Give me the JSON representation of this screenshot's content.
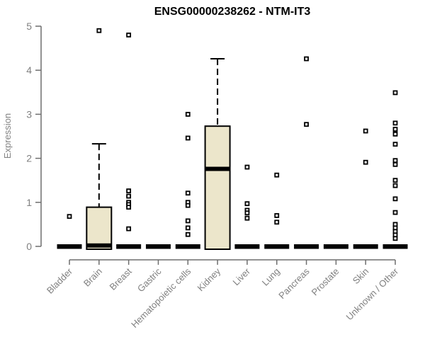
{
  "chart_data": {
    "type": "boxplot",
    "title": "ENSG00000238262 - NTM-IT3",
    "ylabel": "Expression",
    "ylim": [
      0,
      5
    ],
    "yticks": [
      0,
      1,
      2,
      3,
      4,
      5
    ],
    "grid": false,
    "legend": "none",
    "axis_color": "#6e6e6e",
    "label_color": "#808080",
    "title_color": "#000000",
    "box_fill": "#ece6cb",
    "box_stroke": "#000000",
    "categories": [
      "Bladder",
      "Brain",
      "Breast",
      "Gastric",
      "Hematopoietic cells",
      "Kidney",
      "Liver",
      "Lung",
      "Pancreas",
      "Prostate",
      "Skin",
      "Unknown / Other"
    ],
    "boxes": [
      {
        "category": "Bladder",
        "q1": 0,
        "median": 0,
        "q3": 0,
        "whisker_low": 0,
        "whisker_high": 0,
        "outliers": [
          0.68
        ]
      },
      {
        "category": "Brain",
        "q1": 0,
        "median": 0.02,
        "q3": 0.89,
        "whisker_low": 0,
        "whisker_high": 2.33,
        "outliers": [
          4.9
        ]
      },
      {
        "category": "Breast",
        "q1": 0,
        "median": 0,
        "q3": 0,
        "whisker_low": 0,
        "whisker_high": 0,
        "outliers": [
          4.8,
          1.26,
          1.14,
          1.0,
          0.95,
          0.89,
          0.4
        ]
      },
      {
        "category": "Gastric",
        "q1": 0,
        "median": 0,
        "q3": 0,
        "whisker_low": 0,
        "whisker_high": 0,
        "outliers": []
      },
      {
        "category": "Hematopoietic cells",
        "q1": 0,
        "median": 0,
        "q3": 0,
        "whisker_low": 0,
        "whisker_high": 0,
        "outliers": [
          3.0,
          2.46,
          1.21,
          1.0,
          0.93,
          0.58,
          0.42,
          0.27
        ]
      },
      {
        "category": "Kidney",
        "q1": 0,
        "median": 1.76,
        "q3": 2.73,
        "whisker_low": 0,
        "whisker_high": 4.26,
        "outliers": []
      },
      {
        "category": "Liver",
        "q1": 0,
        "median": 0,
        "q3": 0,
        "whisker_low": 0,
        "whisker_high": 0,
        "outliers": [
          1.8,
          0.97,
          0.82,
          0.76,
          0.64
        ]
      },
      {
        "category": "Lung",
        "q1": 0,
        "median": 0,
        "q3": 0,
        "whisker_low": 0,
        "whisker_high": 0,
        "outliers": [
          1.62,
          0.7,
          0.55
        ]
      },
      {
        "category": "Pancreas",
        "q1": 0,
        "median": 0,
        "q3": 0,
        "whisker_low": 0,
        "whisker_high": 0,
        "outliers": [
          4.26,
          2.77
        ]
      },
      {
        "category": "Prostate",
        "q1": 0,
        "median": 0,
        "q3": 0,
        "whisker_low": 0,
        "whisker_high": 0,
        "outliers": []
      },
      {
        "category": "Skin",
        "q1": 0,
        "median": 0,
        "q3": 0,
        "whisker_low": 0,
        "whisker_high": 0,
        "outliers": [
          2.62,
          1.91
        ]
      },
      {
        "category": "Unknown / Other",
        "q1": 0,
        "median": 0,
        "q3": 0,
        "whisker_low": 0,
        "whisker_high": 0,
        "outliers": [
          3.49,
          2.8,
          2.66,
          2.55,
          2.32,
          1.95,
          1.86,
          1.5,
          1.38,
          1.08,
          0.77,
          0.5,
          0.42,
          0.34,
          0.26,
          0.18
        ]
      }
    ]
  }
}
